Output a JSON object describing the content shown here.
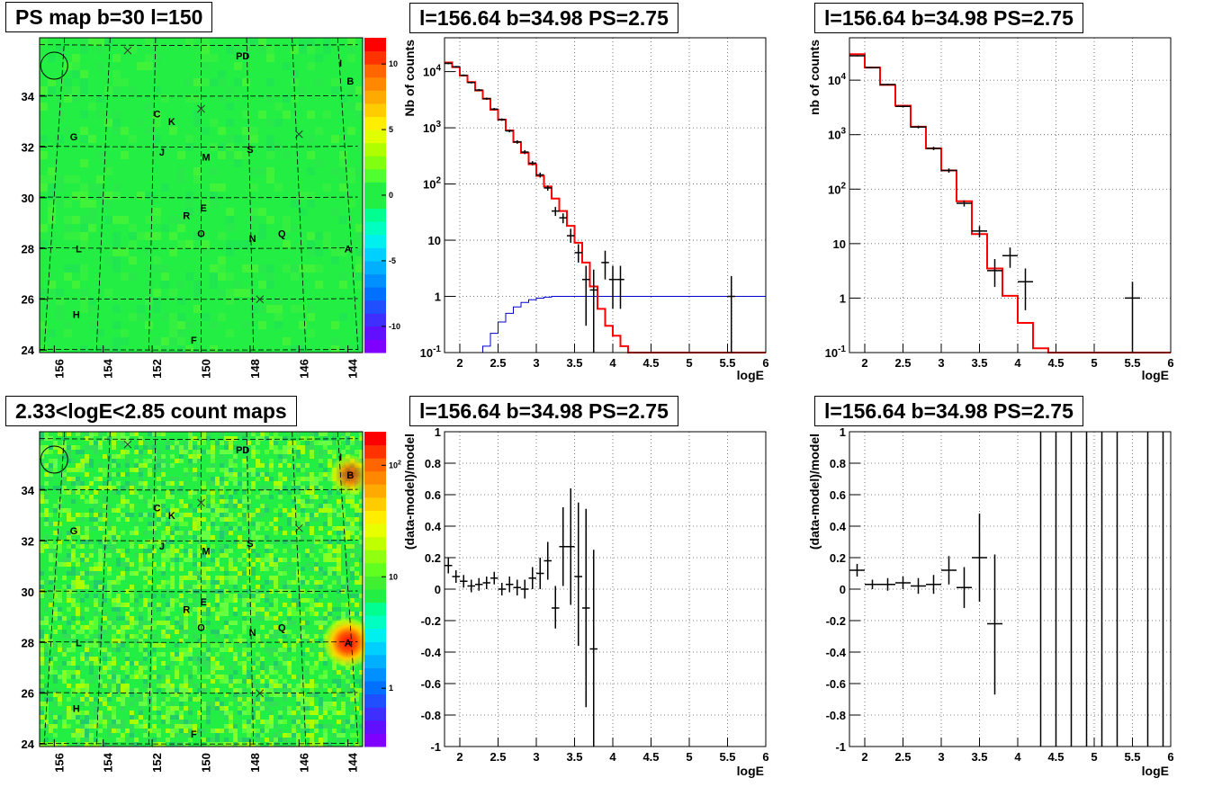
{
  "titles": {
    "map_top": "PS map b=30 l=150",
    "spec_top_mid": "l=156.64 b=34.98 PS=2.75",
    "spec_top_right": "l=156.64 b=34.98 PS=2.75",
    "map_bottom": "2.33<logE<2.85 count maps",
    "res_bottom_mid": "l=156.64 b=34.98 PS=2.75",
    "res_bottom_right": "l=156.64 b=34.98 PS=2.75"
  },
  "colors": {
    "model_line": "#ff0000",
    "secondary_line": "#0000cc",
    "data": "#000000",
    "map_background": "#22ee44"
  },
  "chart_data": [
    {
      "type": "heatmap",
      "title": "PS map b=30 l=150",
      "x_ticks": [
        "156",
        "154",
        "152",
        "150",
        "148",
        "146",
        "144"
      ],
      "y_ticks": [
        "24",
        "26",
        "28",
        "30",
        "32",
        "34"
      ],
      "colorbar_ticks": [
        "10",
        "5",
        "0",
        "-5",
        "-10"
      ],
      "colorbar_range": [
        -12,
        12
      ],
      "sources": [
        {
          "label": "PD",
          "l": 148.3,
          "b": 35.6
        },
        {
          "label": "I",
          "l": 144.3,
          "b": 35.3
        },
        {
          "label": "B",
          "l": 143.9,
          "b": 34.6
        },
        {
          "label": "C",
          "l": 151.8,
          "b": 33.3
        },
        {
          "label": "K",
          "l": 151.2,
          "b": 33.0
        },
        {
          "label": "G",
          "l": 155.2,
          "b": 32.4
        },
        {
          "label": "J",
          "l": 151.6,
          "b": 31.8
        },
        {
          "label": "M",
          "l": 149.8,
          "b": 31.6
        },
        {
          "label": "S",
          "l": 148.0,
          "b": 31.9
        },
        {
          "label": "E",
          "l": 149.9,
          "b": 29.6
        },
        {
          "label": "R",
          "l": 150.6,
          "b": 29.3
        },
        {
          "label": "O",
          "l": 150.0,
          "b": 28.6
        },
        {
          "label": "Q",
          "l": 146.7,
          "b": 28.6
        },
        {
          "label": "N",
          "l": 147.9,
          "b": 28.4
        },
        {
          "label": "A",
          "l": 144.0,
          "b": 28.0
        },
        {
          "label": "L",
          "l": 155.0,
          "b": 28.0
        },
        {
          "label": "H",
          "l": 155.1,
          "b": 25.4
        },
        {
          "label": "F",
          "l": 150.3,
          "b": 24.4
        }
      ],
      "crosses": [
        {
          "l": 153.0,
          "b": 35.8
        },
        {
          "l": 150.0,
          "b": 33.5
        },
        {
          "l": 146.0,
          "b": 32.5
        },
        {
          "l": 147.6,
          "b": 26.0
        }
      ],
      "circle": {
        "l": 156.0,
        "b": 35.2
      }
    },
    {
      "type": "line",
      "title": "l=156.64 b=34.98 PS=2.75",
      "xlabel": "logE",
      "ylabel": "Nb of counts",
      "xlim": [
        1.8,
        6
      ],
      "ylim": [
        0.1,
        40000
      ],
      "y_log": true,
      "x_ticks": [
        "2",
        "2.5",
        "3",
        "3.5",
        "4",
        "4.5",
        "5",
        "5.5",
        "6"
      ],
      "y_ticks": [
        "10^-1",
        "1",
        "10",
        "10^2",
        "10^3",
        "10^4"
      ],
      "grid": true,
      "model_steps": [
        [
          1.8,
          1.9,
          14500
        ],
        [
          1.9,
          2.0,
          12000
        ],
        [
          2.0,
          2.1,
          8500
        ],
        [
          2.1,
          2.2,
          6500
        ],
        [
          2.2,
          2.3,
          4600
        ],
        [
          2.3,
          2.4,
          3300
        ],
        [
          2.4,
          2.5,
          2100
        ],
        [
          2.5,
          2.6,
          1400
        ],
        [
          2.6,
          2.7,
          900
        ],
        [
          2.7,
          2.8,
          560
        ],
        [
          2.8,
          2.9,
          360
        ],
        [
          2.9,
          3.0,
          225
        ],
        [
          3.0,
          3.1,
          140
        ],
        [
          3.1,
          3.2,
          90
        ],
        [
          3.2,
          3.3,
          55
        ],
        [
          3.3,
          3.4,
          33
        ],
        [
          3.4,
          3.5,
          18
        ],
        [
          3.5,
          3.6,
          9
        ],
        [
          3.6,
          3.7,
          4
        ],
        [
          3.7,
          3.8,
          1.5
        ],
        [
          3.8,
          3.9,
          0.6
        ],
        [
          3.9,
          4.0,
          0.3
        ],
        [
          4.0,
          4.1,
          0.2
        ],
        [
          4.1,
          4.2,
          0.13
        ],
        [
          4.2,
          6.0,
          0.1
        ]
      ],
      "background_steps": [
        [
          2.3,
          2.4,
          0.13
        ],
        [
          2.4,
          2.5,
          0.22
        ],
        [
          2.5,
          2.6,
          0.35
        ],
        [
          2.6,
          2.7,
          0.5
        ],
        [
          2.7,
          2.8,
          0.65
        ],
        [
          2.8,
          2.9,
          0.78
        ],
        [
          2.9,
          3.0,
          0.87
        ],
        [
          3.0,
          3.1,
          0.93
        ],
        [
          3.1,
          3.2,
          0.97
        ],
        [
          3.2,
          6.0,
          1.0
        ]
      ],
      "points": [
        {
          "x": 1.85,
          "y": 14000,
          "lo": 13500,
          "hi": 14500
        },
        {
          "x": 1.95,
          "y": 12200,
          "lo": 11800,
          "hi": 12600
        },
        {
          "x": 2.05,
          "y": 8600,
          "lo": 8300,
          "hi": 8900
        },
        {
          "x": 2.15,
          "y": 6400,
          "lo": 6150,
          "hi": 6650
        },
        {
          "x": 2.25,
          "y": 4700,
          "lo": 4500,
          "hi": 4900
        },
        {
          "x": 2.35,
          "y": 3300,
          "lo": 3150,
          "hi": 3450
        },
        {
          "x": 2.45,
          "y": 2150,
          "lo": 2050,
          "hi": 2250
        },
        {
          "x": 2.55,
          "y": 1400,
          "lo": 1330,
          "hi": 1470
        },
        {
          "x": 2.65,
          "y": 880,
          "lo": 830,
          "hi": 930
        },
        {
          "x": 2.75,
          "y": 560,
          "lo": 520,
          "hi": 600
        },
        {
          "x": 2.85,
          "y": 370,
          "lo": 340,
          "hi": 400
        },
        {
          "x": 2.95,
          "y": 235,
          "lo": 215,
          "hi": 255
        },
        {
          "x": 3.05,
          "y": 145,
          "lo": 130,
          "hi": 160
        },
        {
          "x": 3.15,
          "y": 85,
          "lo": 76,
          "hi": 94
        },
        {
          "x": 3.25,
          "y": 33,
          "lo": 27,
          "hi": 39
        },
        {
          "x": 3.35,
          "y": 25,
          "lo": 20,
          "hi": 30
        },
        {
          "x": 3.45,
          "y": 12,
          "lo": 9,
          "hi": 16
        },
        {
          "x": 3.55,
          "y": 6,
          "lo": 4,
          "hi": 8.5
        },
        {
          "x": 3.65,
          "y": 2,
          "lo": 0.3,
          "hi": 3.5
        },
        {
          "x": 3.75,
          "y": 1.3,
          "lo": 0.1,
          "hi": 3
        },
        {
          "x": 3.9,
          "y": 4,
          "lo": 2,
          "hi": 6.5
        },
        {
          "x": 4.0,
          "y": 2,
          "lo": 0.6,
          "hi": 3.5
        },
        {
          "x": 4.1,
          "y": 2,
          "lo": 0.6,
          "hi": 3.5
        },
        {
          "x": 5.55,
          "y": 1,
          "lo": 0.1,
          "hi": 2.3
        }
      ]
    },
    {
      "type": "line",
      "title": "l=156.64 b=34.98 PS=2.75",
      "xlabel": "logE",
      "ylabel": "nb of counts",
      "xlim": [
        1.8,
        6
      ],
      "ylim": [
        0.1,
        60000
      ],
      "y_log": true,
      "x_ticks": [
        "2",
        "2.5",
        "3",
        "3.5",
        "4",
        "4.5",
        "5",
        "5.5",
        "6"
      ],
      "y_ticks": [
        "10^-1",
        "1",
        "10",
        "10^2",
        "10^3",
        "10^4"
      ],
      "grid": true,
      "model_steps": [
        [
          1.8,
          2.0,
          30000
        ],
        [
          2.0,
          2.2,
          17000
        ],
        [
          2.2,
          2.4,
          8200
        ],
        [
          2.4,
          2.6,
          3400
        ],
        [
          2.6,
          2.8,
          1400
        ],
        [
          2.8,
          3.0,
          560
        ],
        [
          3.0,
          3.2,
          220
        ],
        [
          3.2,
          3.4,
          60
        ],
        [
          3.4,
          3.6,
          15
        ],
        [
          3.6,
          3.8,
          3.5
        ],
        [
          3.8,
          4.0,
          1.1
        ],
        [
          4.0,
          4.2,
          0.35
        ],
        [
          4.2,
          4.4,
          0.12
        ],
        [
          4.4,
          6.0,
          0.1
        ]
      ],
      "points": [
        {
          "x": 1.9,
          "y": 28000,
          "lo": 27300,
          "hi": 28700
        },
        {
          "x": 2.1,
          "y": 17000,
          "lo": 16500,
          "hi": 17500
        },
        {
          "x": 2.3,
          "y": 8300,
          "lo": 8000,
          "hi": 8600
        },
        {
          "x": 2.5,
          "y": 3300,
          "lo": 3150,
          "hi": 3450
        },
        {
          "x": 2.7,
          "y": 1380,
          "lo": 1300,
          "hi": 1460
        },
        {
          "x": 2.9,
          "y": 560,
          "lo": 520,
          "hi": 600
        },
        {
          "x": 3.1,
          "y": 220,
          "lo": 200,
          "hi": 240
        },
        {
          "x": 3.3,
          "y": 55,
          "lo": 48,
          "hi": 62
        },
        {
          "x": 3.5,
          "y": 17,
          "lo": 13,
          "hi": 21
        },
        {
          "x": 3.7,
          "y": 3.2,
          "lo": 1.6,
          "hi": 5.2
        },
        {
          "x": 3.9,
          "y": 6,
          "lo": 3.6,
          "hi": 8.5
        },
        {
          "x": 4.1,
          "y": 2,
          "lo": 0.6,
          "hi": 3.5
        },
        {
          "x": 5.5,
          "y": 1,
          "lo": 0.1,
          "hi": 2
        }
      ]
    },
    {
      "type": "heatmap",
      "title": "2.33<logE<2.85 count maps",
      "x_ticks": [
        "156",
        "154",
        "152",
        "150",
        "148",
        "146",
        "144"
      ],
      "y_ticks": [
        "24",
        "26",
        "28",
        "30",
        "32",
        "34"
      ],
      "colorbar_ticks": [
        "10^2",
        "10",
        "1"
      ],
      "colorbar_range": [
        0.3,
        200
      ],
      "hotspots": [
        {
          "label": "A",
          "l": 144.0,
          "b": 28.0,
          "strength": 1.0,
          "radius": 1.1
        },
        {
          "label": "B",
          "l": 143.9,
          "b": 34.6,
          "strength": 0.7,
          "radius": 0.9
        }
      ],
      "sources": [
        {
          "label": "PD",
          "l": 148.3,
          "b": 35.6
        },
        {
          "label": "I",
          "l": 144.3,
          "b": 35.3
        },
        {
          "label": "B",
          "l": 143.9,
          "b": 34.6
        },
        {
          "label": "C",
          "l": 151.8,
          "b": 33.3
        },
        {
          "label": "K",
          "l": 151.2,
          "b": 33.0
        },
        {
          "label": "G",
          "l": 155.2,
          "b": 32.4
        },
        {
          "label": "J",
          "l": 151.6,
          "b": 31.8
        },
        {
          "label": "M",
          "l": 149.8,
          "b": 31.6
        },
        {
          "label": "S",
          "l": 148.0,
          "b": 31.9
        },
        {
          "label": "E",
          "l": 149.9,
          "b": 29.6
        },
        {
          "label": "R",
          "l": 150.6,
          "b": 29.3
        },
        {
          "label": "O",
          "l": 150.0,
          "b": 28.6
        },
        {
          "label": "Q",
          "l": 146.7,
          "b": 28.6
        },
        {
          "label": "N",
          "l": 147.9,
          "b": 28.4
        },
        {
          "label": "A",
          "l": 144.0,
          "b": 28.0
        },
        {
          "label": "L",
          "l": 155.0,
          "b": 28.0
        },
        {
          "label": "H",
          "l": 155.1,
          "b": 25.4
        },
        {
          "label": "F",
          "l": 150.3,
          "b": 24.4
        }
      ],
      "crosses": [
        {
          "l": 153.0,
          "b": 35.8
        },
        {
          "l": 150.0,
          "b": 33.5
        },
        {
          "l": 146.0,
          "b": 32.5
        },
        {
          "l": 147.6,
          "b": 26.0
        }
      ],
      "circle": {
        "l": 156.0,
        "b": 35.2
      }
    },
    {
      "type": "scatter",
      "title": "l=156.64 b=34.98 PS=2.75",
      "xlabel": "logE",
      "ylabel": "(data-model)/model",
      "xlim": [
        1.8,
        6
      ],
      "ylim": [
        -1,
        1
      ],
      "x_ticks": [
        "2",
        "2.5",
        "3",
        "3.5",
        "4",
        "4.5",
        "5",
        "5.5",
        "6"
      ],
      "y_ticks": [
        "-1",
        "-0.8",
        "-0.6",
        "-0.4",
        "-0.2",
        "0",
        "0.2",
        "0.4",
        "0.6",
        "0.8",
        "1"
      ],
      "grid": true,
      "points": [
        {
          "x": 1.85,
          "y": 0.15,
          "lo": 0.1,
          "hi": 0.2
        },
        {
          "x": 1.95,
          "y": 0.08,
          "lo": 0.04,
          "hi": 0.12
        },
        {
          "x": 2.05,
          "y": 0.05,
          "lo": 0.01,
          "hi": 0.09
        },
        {
          "x": 2.15,
          "y": 0.02,
          "lo": -0.02,
          "hi": 0.06
        },
        {
          "x": 2.25,
          "y": 0.03,
          "lo": -0.01,
          "hi": 0.07
        },
        {
          "x": 2.35,
          "y": 0.04,
          "lo": -0.0,
          "hi": 0.08
        },
        {
          "x": 2.45,
          "y": 0.07,
          "lo": 0.03,
          "hi": 0.11
        },
        {
          "x": 2.55,
          "y": 0.0,
          "lo": -0.04,
          "hi": 0.04
        },
        {
          "x": 2.65,
          "y": 0.03,
          "lo": -0.02,
          "hi": 0.08
        },
        {
          "x": 2.75,
          "y": 0.01,
          "lo": -0.04,
          "hi": 0.06
        },
        {
          "x": 2.85,
          "y": 0.0,
          "lo": -0.06,
          "hi": 0.06
        },
        {
          "x": 2.95,
          "y": 0.07,
          "lo": 0.0,
          "hi": 0.14
        },
        {
          "x": 3.05,
          "y": 0.1,
          "lo": 0.0,
          "hi": 0.2
        },
        {
          "x": 3.15,
          "y": 0.18,
          "lo": 0.06,
          "hi": 0.3
        },
        {
          "x": 3.25,
          "y": -0.12,
          "lo": -0.25,
          "hi": 0.02
        },
        {
          "x": 3.35,
          "y": 0.27,
          "lo": 0.02,
          "hi": 0.52
        },
        {
          "x": 3.45,
          "y": 0.27,
          "lo": -0.1,
          "hi": 0.64
        },
        {
          "x": 3.55,
          "y": 0.08,
          "lo": -0.36,
          "hi": 0.55
        },
        {
          "x": 3.65,
          "y": -0.12,
          "lo": -0.75,
          "hi": 0.51
        },
        {
          "x": 3.75,
          "y": -0.38,
          "lo": -1.0,
          "hi": 0.25
        }
      ]
    },
    {
      "type": "scatter",
      "title": "l=156.64 b=34.98 PS=2.75",
      "xlabel": "logE",
      "ylabel": "(data-model)/model",
      "xlim": [
        1.8,
        6
      ],
      "ylim": [
        -1,
        1
      ],
      "x_ticks": [
        "2",
        "2.5",
        "3",
        "3.5",
        "4",
        "4.5",
        "5",
        "5.5",
        "6"
      ],
      "y_ticks": [
        "-1",
        "-0.8",
        "-0.6",
        "-0.4",
        "-0.2",
        "0",
        "0.2",
        "0.4",
        "0.6",
        "0.8",
        "1"
      ],
      "grid": true,
      "points": [
        {
          "x": 1.9,
          "y": 0.12,
          "lo": 0.08,
          "hi": 0.16
        },
        {
          "x": 2.1,
          "y": 0.03,
          "lo": -0.0,
          "hi": 0.06
        },
        {
          "x": 2.3,
          "y": 0.03,
          "lo": -0.01,
          "hi": 0.07
        },
        {
          "x": 2.5,
          "y": 0.04,
          "lo": -0.0,
          "hi": 0.08
        },
        {
          "x": 2.7,
          "y": 0.02,
          "lo": -0.03,
          "hi": 0.07
        },
        {
          "x": 2.9,
          "y": 0.03,
          "lo": -0.03,
          "hi": 0.09
        },
        {
          "x": 3.1,
          "y": 0.12,
          "lo": 0.03,
          "hi": 0.21
        },
        {
          "x": 3.3,
          "y": 0.01,
          "lo": -0.12,
          "hi": 0.14
        },
        {
          "x": 3.5,
          "y": 0.2,
          "lo": -0.08,
          "hi": 0.48
        },
        {
          "x": 3.7,
          "y": -0.22,
          "lo": -0.67,
          "hi": 0.22
        },
        {
          "x": 4.3,
          "y": 1.0,
          "lo": -1.0,
          "hi": 1.0
        },
        {
          "x": 4.5,
          "y": 1.0,
          "lo": -1.0,
          "hi": 1.0
        },
        {
          "x": 4.7,
          "y": 1.0,
          "lo": -1.0,
          "hi": 1.0
        },
        {
          "x": 4.9,
          "y": 1.0,
          "lo": -1.0,
          "hi": 1.0
        },
        {
          "x": 5.1,
          "y": 1.0,
          "lo": -1.0,
          "hi": 1.0
        },
        {
          "x": 5.3,
          "y": 1.0,
          "lo": -1.0,
          "hi": 1.0
        },
        {
          "x": 5.7,
          "y": 1.0,
          "lo": -1.0,
          "hi": 1.0
        },
        {
          "x": 5.9,
          "y": 1.0,
          "lo": -1.0,
          "hi": 1.0
        }
      ]
    }
  ]
}
